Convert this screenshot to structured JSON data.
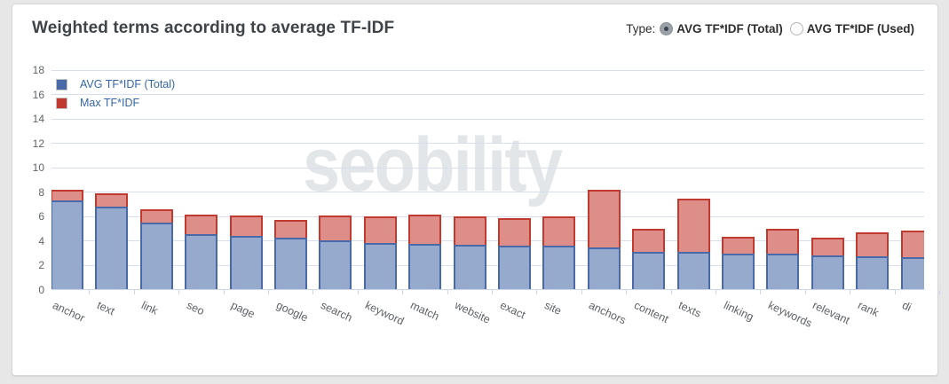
{
  "header": {
    "title": "Weighted terms according to average TF-IDF",
    "type_label": "Type:",
    "type_options": [
      {
        "label": "AVG TF*IDF (Total)",
        "selected": true
      },
      {
        "label": "AVG TF*IDF (Used)",
        "selected": false
      }
    ]
  },
  "watermark": "seobility",
  "colors": {
    "page_bg": "#e7e7e7",
    "card_bg": "#ffffff",
    "gridline": "#d8deec",
    "axis_line": "#ccd6eb",
    "title_text": "#3f4449",
    "legend_text": "#3566a9",
    "watermark_text": "#e3e6e9"
  },
  "chart_data": {
    "type": "bar",
    "title": "Weighted terms according to average TF-IDF",
    "xlabel": "",
    "ylabel": "",
    "ylim": [
      0,
      18
    ],
    "yticks": [
      0,
      2,
      4,
      6,
      8,
      10,
      12,
      14,
      16,
      18
    ],
    "grid": true,
    "legend_position": "top-left",
    "categories": [
      "anchor",
      "text",
      "link",
      "seo",
      "page",
      "google",
      "search",
      "keyword",
      "match",
      "website",
      "exact",
      "site",
      "anchors",
      "content",
      "texts",
      "linking",
      "keywords",
      "relevant",
      "rank",
      "di"
    ],
    "series": [
      {
        "name": "AVG TF*IDF (Total)",
        "fill": "#95aacd",
        "border": "#4a69a8",
        "values": [
          7.3,
          6.8,
          5.5,
          4.6,
          4.4,
          4.3,
          4.1,
          3.85,
          3.75,
          3.7,
          3.6,
          3.6,
          3.5,
          3.1,
          3.1,
          3.0,
          2.95,
          2.85,
          2.75,
          2.7
        ]
      },
      {
        "name": "Max TF*IDF",
        "fill": "#dd8e88",
        "border": "#c13a30",
        "values": [
          8.2,
          7.9,
          6.6,
          6.2,
          6.1,
          5.75,
          6.1,
          6.0,
          6.15,
          6.0,
          5.9,
          6.05,
          8.2,
          5.0,
          7.5,
          4.35,
          5.0,
          4.3,
          4.7,
          4.85
        ]
      }
    ]
  }
}
